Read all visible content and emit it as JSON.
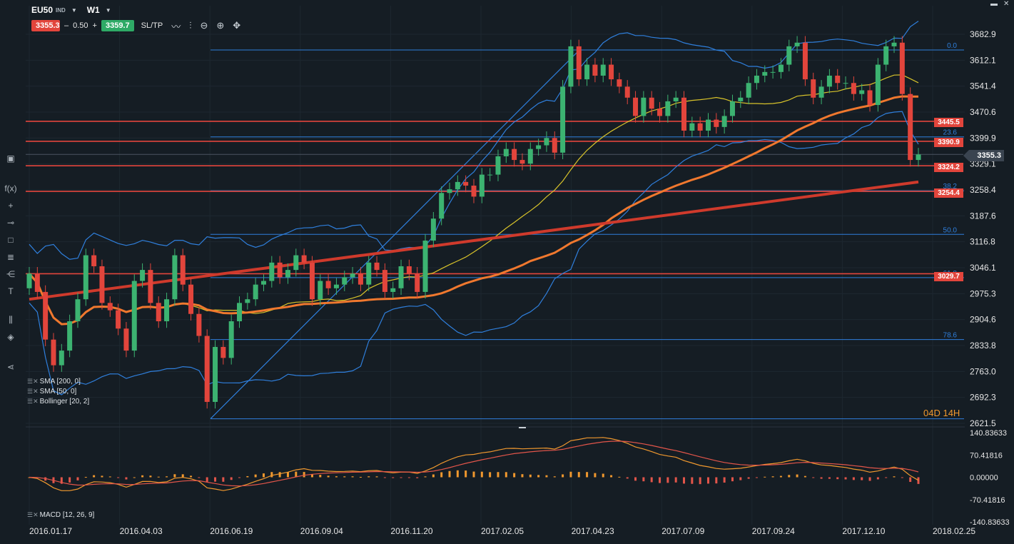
{
  "header": {
    "symbol": "EU50",
    "exchange": "IND",
    "timeframe": "W1",
    "sell_price": "3355.3",
    "spread": "0.50",
    "buy_price": "3359.7",
    "sltp_label": "SL/TP",
    "minus": "–",
    "plus": "+"
  },
  "icons": {
    "chart_type": "line-chart-icon",
    "bars": "candles-icon",
    "zoom_out": "zoom-out-icon",
    "zoom_in": "zoom-in-icon",
    "crosshair": "crosshair-icon"
  },
  "sidebar": {
    "items": [
      "screen-icon",
      "function-icon",
      "crosshair-tool-icon",
      "line-tool-icon",
      "rectangle-tool-icon",
      "fibonacci-icon",
      "pitchfork-icon",
      "text-tool-icon",
      "indicators-icon",
      "layers-icon",
      "share-icon"
    ],
    "fx_label": "f(x)",
    "text_tool_label": "T"
  },
  "legend": {
    "sma200": "SMA [200, 0]",
    "sma50": "SMA [50, 0]",
    "bollinger": "Bollinger [20, 2]",
    "macd": "MACD [12, 26, 9]"
  },
  "countdown": "04D 14H",
  "colors": {
    "background": "#151d24",
    "up": "#3cb371",
    "down": "#e2453c",
    "bollinger": "#2f7fdc",
    "sma20": "#d8c32a",
    "sma50": "#f0782e",
    "sma200": "#cf3a2c",
    "price_line": "#e2453c",
    "fib": "#2f7fdc"
  },
  "chart_data": {
    "type": "candlestick",
    "instrument": "EU50",
    "y_ticks": [
      "3682.9",
      "3612.1",
      "3541.4",
      "3470.6",
      "3399.9",
      "3329.1",
      "3258.4",
      "3187.6",
      "3116.8",
      "3046.1",
      "2975.3",
      "2904.6",
      "2833.8",
      "2763.0",
      "2692.3",
      "2621.5"
    ],
    "ylim": [
      2621.5,
      3682.9
    ],
    "x_ticks": [
      "2016.01.17",
      "2016.04.03",
      "2016.06.19",
      "2016.09.04",
      "2016.11.20",
      "2017.02.05",
      "2017.04.23",
      "2017.07.09",
      "2017.09.24",
      "2017.12.10",
      "2018.02.25"
    ],
    "horizontal_levels": [
      {
        "label": "3445.5",
        "value": 3445.5
      },
      {
        "label": "3390.9",
        "value": 3390.9
      },
      {
        "label": "3324.2",
        "value": 3324.2
      },
      {
        "label": "3254.4",
        "value": 3254.4
      },
      {
        "label": "3029.7",
        "value": 3029.7
      }
    ],
    "current_price": "3355.3",
    "fibonacci": [
      {
        "label": "0.0",
        "value": 3640
      },
      {
        "label": "23.6",
        "value": 3403
      },
      {
        "label": "38.2",
        "value": 3256
      },
      {
        "label": "50.0",
        "value": 3137
      },
      {
        "label": "61.8",
        "value": 3019
      },
      {
        "label": "78.6",
        "value": 2850
      }
    ],
    "fib_range": [
      2634,
      3640
    ],
    "close": [
      3030,
      2980,
      2850,
      2780,
      2820,
      2900,
      2960,
      3080,
      3050,
      2950,
      2930,
      2880,
      2820,
      3010,
      3040,
      2950,
      2900,
      2960,
      3080,
      3000,
      2920,
      2860,
      2680,
      2830,
      2800,
      2900,
      2950,
      2960,
      3000,
      3010,
      3060,
      3020,
      3040,
      3080,
      3060,
      2960,
      3010,
      2990,
      3000,
      3020,
      3030,
      3000,
      3060,
      3040,
      2980,
      2990,
      3050,
      3030,
      2980,
      3120,
      3180,
      3250,
      3260,
      3280,
      3270,
      3240,
      3300,
      3300,
      3350,
      3370,
      3340,
      3330,
      3370,
      3380,
      3400,
      3360,
      3540,
      3650,
      3560,
      3600,
      3570,
      3600,
      3560,
      3540,
      3510,
      3460,
      3510,
      3480,
      3460,
      3500,
      3510,
      3420,
      3440,
      3420,
      3450,
      3430,
      3460,
      3500,
      3510,
      3550,
      3570,
      3580,
      3580,
      3600,
      3650,
      3660,
      3560,
      3510,
      3540,
      3570,
      3550,
      3550,
      3520,
      3530,
      3490,
      3600,
      3650,
      3660,
      3520,
      3340,
      3355
    ],
    "macd_ticks": [
      "140.83633",
      "70.41816",
      "0.00000",
      "-70.41816",
      "-140.83633"
    ],
    "macd_ylim": [
      -140.83633,
      140.83633
    ]
  }
}
